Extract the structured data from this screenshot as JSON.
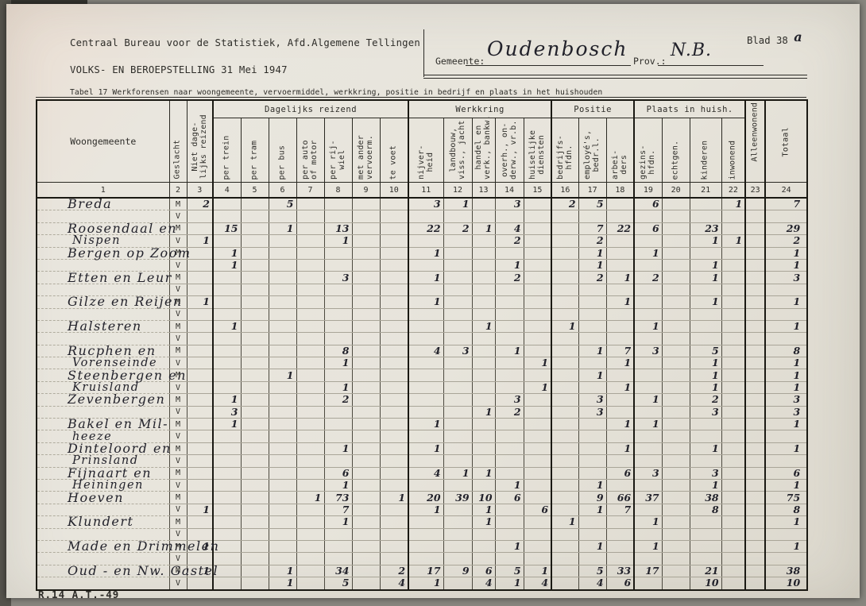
{
  "document": {
    "agency": "Centraal Bureau voor de Statistiek, Afd.Algemene Tellingen",
    "census": "VOLKS- EN BEROEPSTELLING 31 Mei 1947",
    "gemeente_label": "Gemeente:",
    "gemeente_value": "Oudenbosch",
    "prov_label": "Prov.:",
    "prov_value": "N.B.",
    "blad_label": "Blad 38",
    "blad_suffix": "a",
    "table_title": "Tabel 17 Werkforensen naar woongemeente, vervoermiddel, werkkring, positie in bedrijf en plaats in het huishouden",
    "form_code": "R.14 A.T.-49"
  },
  "colors": {
    "paper": "#e7e4db",
    "typed_ink": "#2e2d29",
    "handwriting_ink": "#22222b",
    "table_line_heavy": "#1a1913",
    "table_line_row": "#a9a598"
  },
  "table": {
    "corner_headers": {
      "woongemeente": "Woongemeente",
      "geslacht": "Geslacht",
      "niet_dagelijks": "Niet dage-\nlijks reizend",
      "alleenwonend": "Alleenwonend",
      "totaal": "Totaal"
    },
    "groups": [
      {
        "label": "Dagelijks reizend",
        "colspan": 7
      },
      {
        "label": "Werkkring",
        "colspan": 5
      },
      {
        "label": "Positie",
        "colspan": 3
      },
      {
        "label": "Plaats in huish.",
        "colspan": 4
      }
    ],
    "vertical_columns": [
      {
        "col": 4,
        "label": "per trein"
      },
      {
        "col": 5,
        "label": "per tram"
      },
      {
        "col": 6,
        "label": "per bus"
      },
      {
        "col": 7,
        "label": "per auto\nof motor"
      },
      {
        "col": 8,
        "label": "per rij-\nwiel"
      },
      {
        "col": 9,
        "label": "met ander\nvervoerm."
      },
      {
        "col": 10,
        "label": "te voet"
      },
      {
        "col": 11,
        "label": "nijver-\nheid"
      },
      {
        "col": 12,
        "label": "landbouw,\nviss., jacht"
      },
      {
        "col": 13,
        "label": "handel en\nverk., bankw."
      },
      {
        "col": 14,
        "label": "overh., on-\nderw., vr.b."
      },
      {
        "col": 15,
        "label": "huiselijke\ndiensten"
      },
      {
        "col": 16,
        "label": "bedrijfs-\nhfdn."
      },
      {
        "col": 17,
        "label": "employé's,\nbedr.l."
      },
      {
        "col": 18,
        "label": "arbei-\nders"
      },
      {
        "col": 19,
        "label": "gezins-\nhfdn."
      },
      {
        "col": 20,
        "label": "echtgen."
      },
      {
        "col": 21,
        "label": "kinderen"
      },
      {
        "col": 22,
        "label": "inwonend"
      }
    ],
    "column_numbers": [
      "1",
      "2",
      "3",
      "4",
      "5",
      "6",
      "7",
      "8",
      "9",
      "10",
      "11",
      "12",
      "13",
      "14",
      "15",
      "16",
      "17",
      "18",
      "19",
      "20",
      "21",
      "22",
      "23",
      "24"
    ],
    "sex_labels": [
      "M",
      "V"
    ]
  },
  "rows": [
    {
      "line1": "Breda",
      "line2": "",
      "m": {
        "3": "2",
        "6": "5",
        "11": "3",
        "12": "1",
        "14": "3",
        "16": "2",
        "17": "5",
        "19": "6",
        "22": "1",
        "24": "7"
      },
      "v": {}
    },
    {
      "line1": "Roosendaal en",
      "line2": "Nispen",
      "m": {
        "4": "15",
        "6": "1",
        "8": "13",
        "11": "22",
        "12": "2",
        "13": "1",
        "14": "4",
        "17": "7",
        "18": "22",
        "19": "6",
        "21": "23",
        "24": "29"
      },
      "v": {
        "3": "1",
        "8": "1",
        "14": "2",
        "17": "2",
        "21": "1",
        "22": "1",
        "24": "2"
      }
    },
    {
      "line1": "Bergen op Zoom",
      "line2": "",
      "m": {
        "4": "1",
        "11": "1",
        "17": "1",
        "19": "1",
        "24": "1"
      },
      "v": {
        "4": "1",
        "14": "1",
        "17": "1",
        "21": "1",
        "24": "1"
      }
    },
    {
      "line1": "Etten en Leur",
      "line2": "",
      "m": {
        "8": "3",
        "11": "1",
        "14": "2",
        "17": "2",
        "18": "1",
        "19": "2",
        "21": "1",
        "24": "3"
      },
      "v": {}
    },
    {
      "line1": "Gilze en Reijen",
      "line2": "",
      "m": {
        "3": "1",
        "11": "1",
        "18": "1",
        "21": "1",
        "24": "1"
      },
      "v": {}
    },
    {
      "line1": "Halsteren",
      "line2": "",
      "m": {
        "4": "1",
        "13": "1",
        "16": "1",
        "19": "1",
        "24": "1"
      },
      "v": {}
    },
    {
      "line1": "Rucphen en",
      "line2": "Vorenseinde",
      "m": {
        "8": "8",
        "11": "4",
        "12": "3",
        "14": "1",
        "17": "1",
        "18": "7",
        "19": "3",
        "21": "5",
        "24": "8"
      },
      "v": {
        "8": "1",
        "15": "1",
        "18": "1",
        "21": "1",
        "24": "1"
      }
    },
    {
      "line1": "Steenbergen en",
      "line2": "Kruisland",
      "m": {
        "6": "1",
        "17": "1",
        "21": "1",
        "24": "1"
      },
      "v": {
        "8": "1",
        "15": "1",
        "18": "1",
        "21": "1",
        "24": "1"
      }
    },
    {
      "line1": "Zevenbergen",
      "line2": "",
      "m": {
        "4": "1",
        "8": "2",
        "14": "3",
        "17": "3",
        "19": "1",
        "21": "2",
        "24": "3"
      },
      "v": {
        "4": "3",
        "13": "1",
        "14": "2",
        "17": "3",
        "21": "3",
        "24": "3"
      }
    },
    {
      "line1": "Bakel en Mil-",
      "line2": "heeze",
      "m": {
        "4": "1",
        "11": "1",
        "18": "1",
        "19": "1",
        "24": "1"
      },
      "v": {}
    },
    {
      "line1": "Dinteloord en",
      "line2": "Prinsland",
      "m": {
        "8": "1",
        "11": "1",
        "18": "1",
        "21": "1",
        "24": "1"
      },
      "v": {}
    },
    {
      "line1": "Fijnaart en",
      "line2": "Heiningen",
      "m": {
        "8": "6",
        "11": "4",
        "12": "1",
        "13": "1",
        "18": "6",
        "19": "3",
        "21": "3",
        "24": "6"
      },
      "v": {
        "8": "1",
        "14": "1",
        "17": "1",
        "21": "1",
        "24": "1"
      }
    },
    {
      "line1": "Hoeven",
      "line2": "",
      "m": {
        "7": "1",
        "8": "73",
        "10": "1",
        "11": "20",
        "12": "39",
        "13": "10",
        "14": "6",
        "17": "9",
        "18": "66",
        "19": "37",
        "21": "38",
        "24": "75"
      },
      "v": {
        "3": "1",
        "8": "7",
        "11": "1",
        "13": "1",
        "15": "6",
        "17": "1",
        "18": "7",
        "21": "8",
        "24": "8"
      }
    },
    {
      "line1": "Klundert",
      "line2": "",
      "m": {
        "8": "1",
        "13": "1",
        "16": "1",
        "19": "1",
        "24": "1"
      },
      "v": {}
    },
    {
      "line1": "Made en Drimmelen",
      "line2": "",
      "m": {
        "3": "1",
        "14": "1",
        "17": "1",
        "19": "1",
        "24": "1"
      },
      "v": {}
    },
    {
      "line1": "Oud - en Nw. Gastel",
      "line2": "",
      "m": {
        "3": "1",
        "6": "1",
        "8": "34",
        "10": "2",
        "11": "17",
        "12": "9",
        "13": "6",
        "14": "5",
        "15": "1",
        "17": "5",
        "18": "33",
        "19": "17",
        "21": "21",
        "24": "38"
      },
      "v": {
        "6": "1",
        "8": "5",
        "10": "4",
        "11": "1",
        "13": "4",
        "14": "1",
        "15": "4",
        "17": "4",
        "18": "6",
        "21": "10",
        "24": "10"
      }
    }
  ]
}
